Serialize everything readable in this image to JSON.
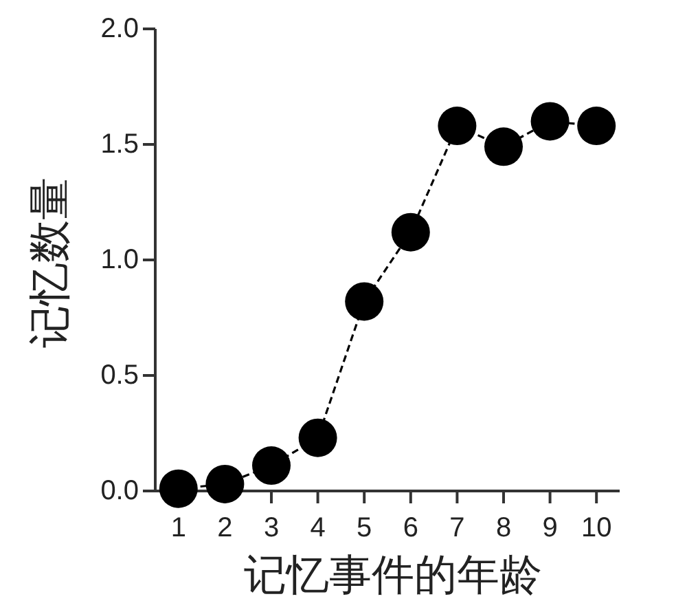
{
  "chart_data": {
    "type": "line",
    "xlabel": "记忆事件的年龄",
    "ylabel": "记忆数量",
    "x": [
      1,
      2,
      3,
      4,
      5,
      6,
      7,
      8,
      9,
      10
    ],
    "series": [
      {
        "color": "#000000",
        "values": [
          0.01,
          0.03,
          0.11,
          0.23,
          0.82,
          1.12,
          1.58,
          1.49,
          1.6,
          1.58
        ]
      }
    ],
    "xlim": [
      0.5,
      10.5
    ],
    "ylim": [
      0,
      2
    ],
    "xticks": [
      1,
      2,
      3,
      4,
      5,
      6,
      7,
      8,
      9,
      10
    ],
    "yticks": [
      {
        "value": 0,
        "label": "0.0"
      },
      {
        "value": 0.5,
        "label": "0.5"
      },
      {
        "value": 1,
        "label": "1.0"
      },
      {
        "value": 1.5,
        "label": "1.5"
      },
      {
        "value": 2,
        "label": "2.0"
      }
    ],
    "marker": "circle",
    "line_style": "dashed"
  }
}
